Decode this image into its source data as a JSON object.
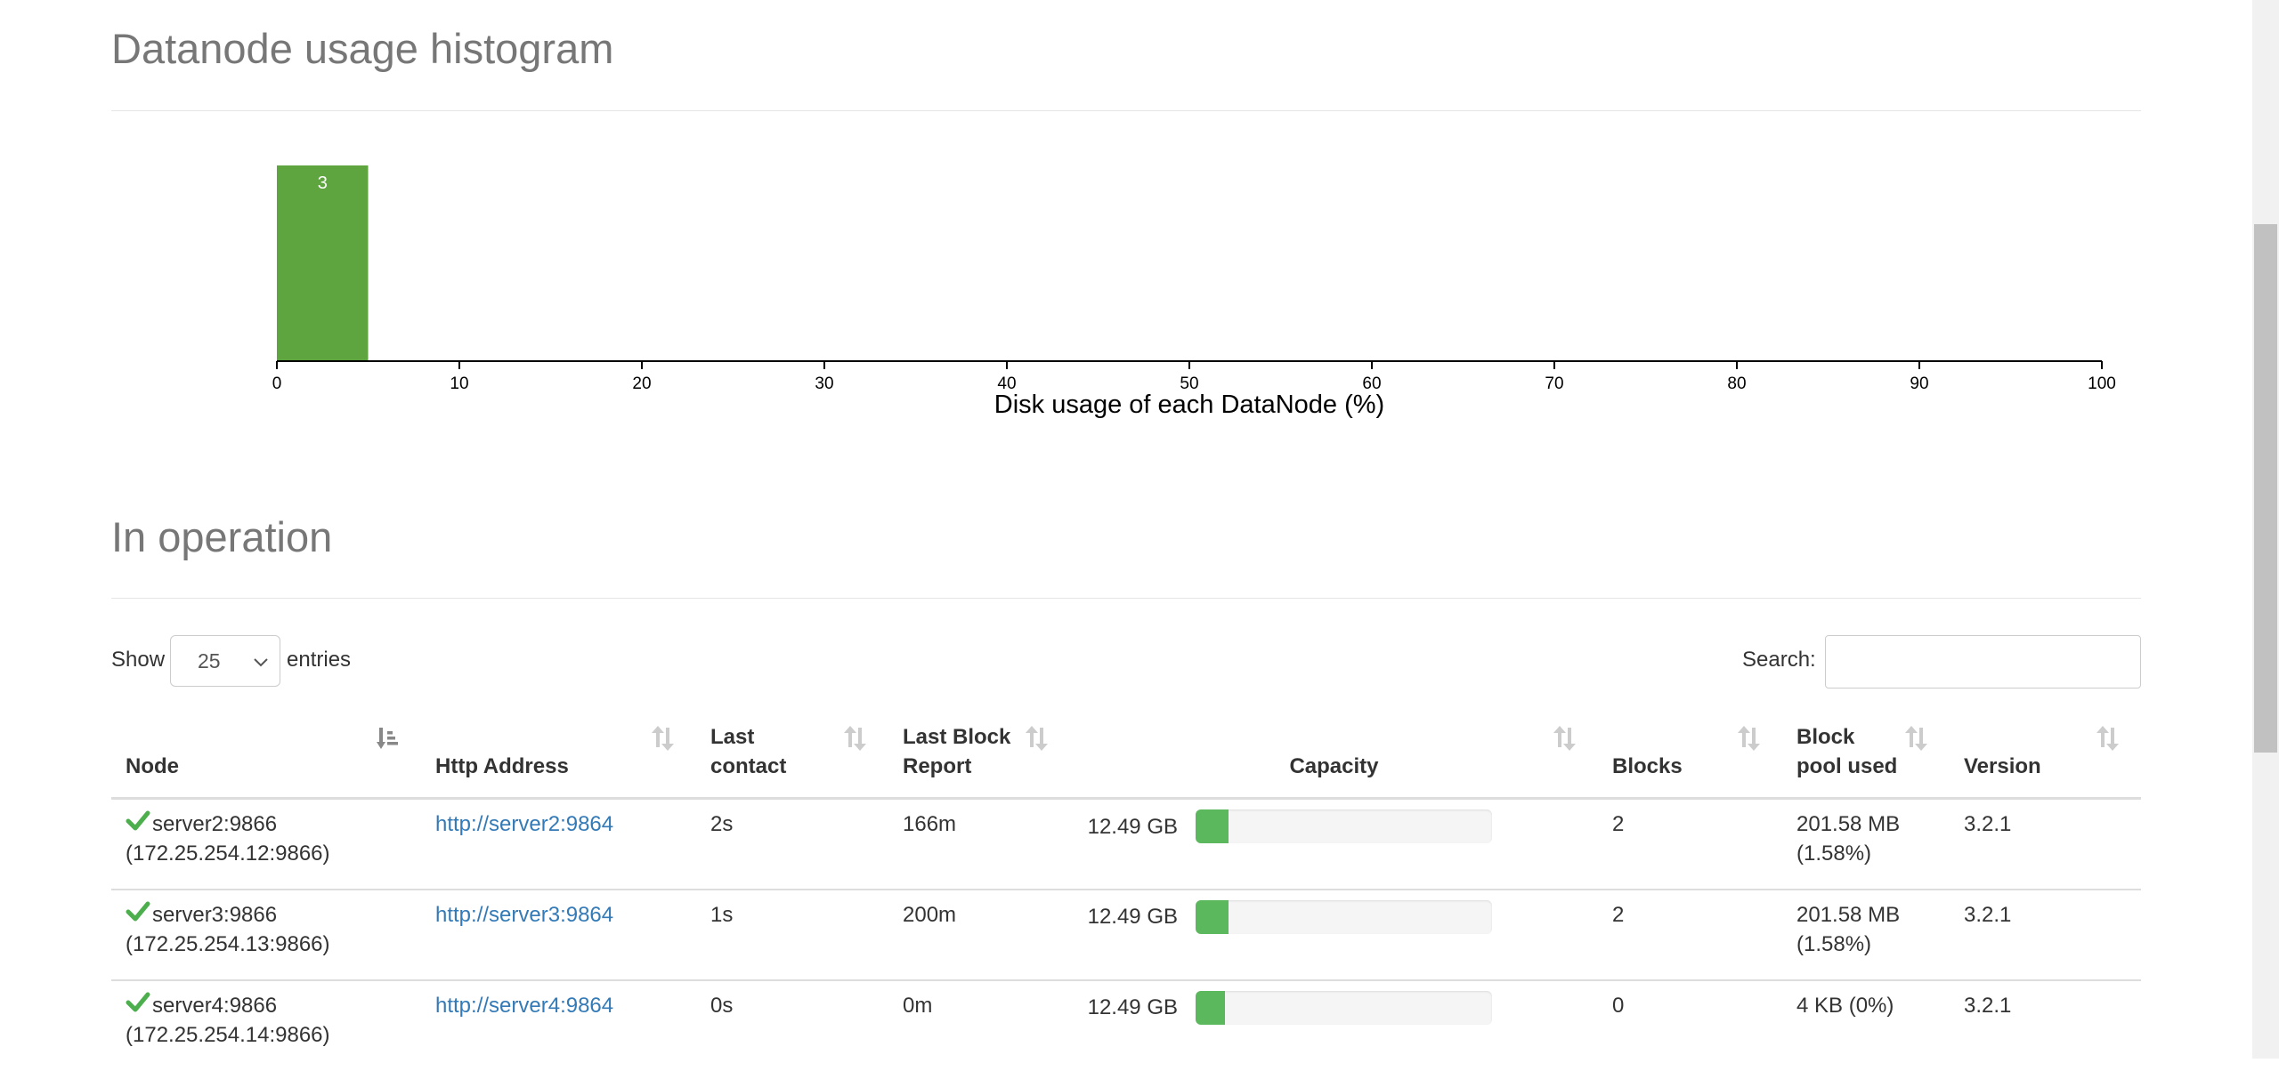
{
  "histogram": {
    "title": "Datanode usage histogram",
    "chart_data": {
      "type": "bar",
      "xlabel": "Disk usage of each DataNode (%)",
      "xlim": [
        0,
        100
      ],
      "ticks": [
        "0",
        "10",
        "20",
        "30",
        "40",
        "50",
        "60",
        "70",
        "80",
        "90",
        "100"
      ],
      "bins": [
        {
          "x0": 0,
          "x1": 5,
          "count": 3
        }
      ],
      "bar_color": "#5fa53f"
    }
  },
  "operation": {
    "title": "In operation",
    "show_label": "Show",
    "entries_label": "entries",
    "page_length": "25",
    "search_label": "Search:",
    "search_value": ""
  },
  "table": {
    "headers": {
      "node": "Node",
      "http": "Http Address",
      "last_contact_1": "Last",
      "last_contact_2": "contact",
      "last_block_1": "Last Block",
      "last_block_2": "Report",
      "capacity": "Capacity",
      "blocks": "Blocks",
      "pool_1": "Block",
      "pool_2": "pool used",
      "version": "Version"
    },
    "rows": [
      {
        "node_name": "server2:9866",
        "node_addr": "(172.25.254.12:9866)",
        "http": "http://server2:9864",
        "last_contact": "2s",
        "last_block": "166m",
        "capacity": "12.49 GB",
        "used_fraction": 0.11,
        "blocks": "2",
        "pool_1": "201.58 MB",
        "pool_2": "(1.58%)",
        "version": "3.2.1"
      },
      {
        "node_name": "server3:9866",
        "node_addr": "(172.25.254.13:9866)",
        "http": "http://server3:9864",
        "last_contact": "1s",
        "last_block": "200m",
        "capacity": "12.49 GB",
        "used_fraction": 0.11,
        "blocks": "2",
        "pool_1": "201.58 MB",
        "pool_2": "(1.58%)",
        "version": "3.2.1"
      },
      {
        "node_name": "server4:9866",
        "node_addr": "(172.25.254.14:9866)",
        "http": "http://server4:9864",
        "last_contact": "0s",
        "last_block": "0m",
        "capacity": "12.49 GB",
        "used_fraction": 0.1,
        "blocks": "0",
        "pool_1": "4 KB (0%)",
        "pool_2": "",
        "version": "3.2.1"
      }
    ]
  },
  "icons": {
    "sort_active": "sort-amount-down-icon",
    "sort": "sort-icon",
    "node_status": "check-icon"
  }
}
